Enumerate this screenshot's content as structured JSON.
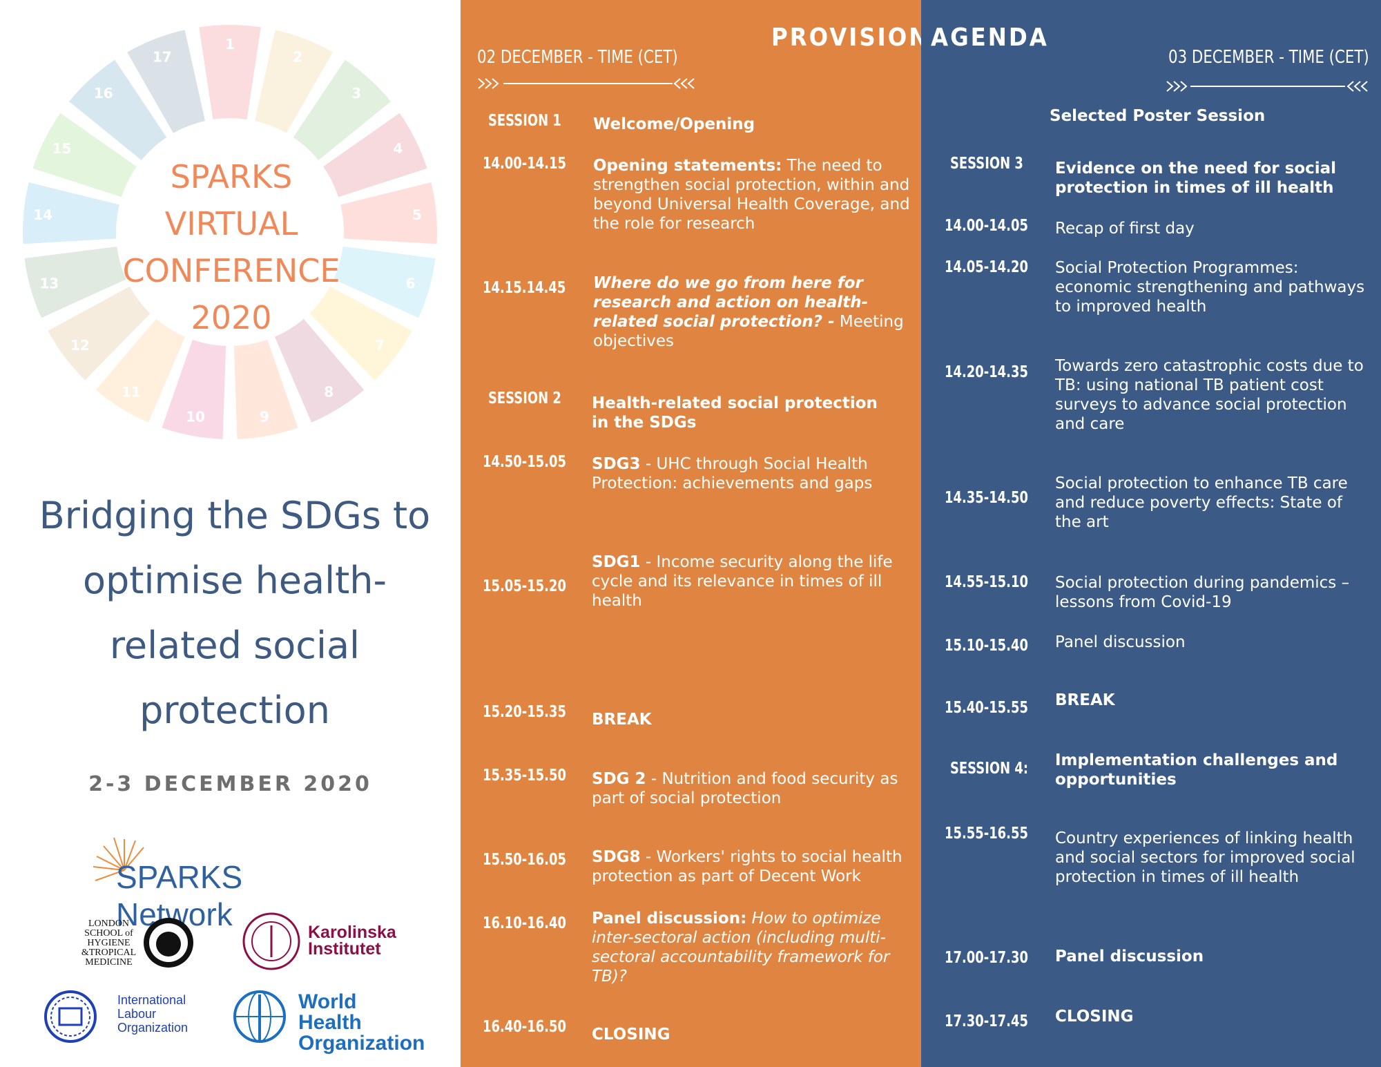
{
  "left": {
    "conference_title": [
      "SPARKS",
      "VIRTUAL",
      "CONFERENCE",
      "2020"
    ],
    "main_title": [
      "Bridging the SDGs to",
      "optimise health-",
      "related social",
      "protection"
    ],
    "dates": "2-3 DECEMBER 2020",
    "logos": {
      "sparks": "SPARKS Network",
      "lshtm": [
        "LONDON",
        "SCHOOL of",
        "HYGIENE",
        "&TROPICAL",
        "MEDICINE"
      ],
      "karolinska": [
        "Karolinska",
        "Institutet"
      ],
      "ilo": [
        "International",
        "Labour",
        "Organization"
      ],
      "who": [
        "World Health",
        "Organization"
      ]
    },
    "sdg_numbers": [
      "1",
      "2",
      "3",
      "4",
      "5",
      "6",
      "7",
      "8",
      "9",
      "10",
      "11",
      "12",
      "13",
      "14",
      "15",
      "16",
      "17"
    ]
  },
  "header": {
    "left": "PROVISIONAL",
    "right": "AGENDA"
  },
  "day1": {
    "heading": "02 DECEMBER - TIME (CET)",
    "session1_label": "SESSION 1",
    "session1_title": "Welcome/Opening",
    "item1_time": "14.00-14.15",
    "item1_bold": "Opening statements:",
    "item1_text": " The need to strengthen social protection, within and beyond Universal Health Coverage, and the role for research",
    "item2_time": "14.15.14.45",
    "item2_boldital": "Where do we go from here for research and action on health-related social protection? -",
    "item2_text": "  Meeting objectives",
    "session2_label": "SESSION 2",
    "session2_title": "Health-related social protection in the SDGs",
    "item3_time": "14.50-15.05",
    "item3_bold": "SDG3",
    "item3_text": " - UHC through Social Health Protection: achievements and gaps",
    "item4_time": "15.05-15.20",
    "item4_bold": "SDG1",
    "item4_text": " - Income security along the life cycle and its relevance in times of ill health",
    "item5_time": "15.20-15.35",
    "item5_title": "BREAK",
    "item6_time": "15.35-15.50",
    "item6_bold": "SDG 2",
    "item6_text": " - Nutrition and food security as part of social protection",
    "item7_time": "15.50-16.05",
    "item7_bold": "SDG8",
    "item7_text": " - Workers' rights to social health protection as part of Decent Work",
    "item8_time": "16.10-16.40",
    "item8_bold": "Panel discussion:",
    "item8_ital": " How to optimize inter-sectoral action (including multi-sectoral accountability framework for TB)?",
    "item9_time": "16.40-16.50",
    "item9_title": "CLOSING"
  },
  "day2": {
    "heading": "03 DECEMBER - TIME (CET)",
    "poster": "Selected Poster Session",
    "session3_label": "SESSION 3",
    "session3_title": "Evidence on the need for social protection in times of ill health",
    "item1_time": "14.00-14.05",
    "item1_text": "Recap of first day",
    "item2_time": "14.05-14.20",
    "item2_text": "Social Protection Programmes: economic strengthening and pathways to improved health",
    "item3_time": "14.20-14.35",
    "item3_text": "Towards zero catastrophic costs due to TB: using national TB patient cost surveys to advance social protection and care",
    "item4_time": "14.35-14.50",
    "item4_text": "Social protection to enhance TB care and reduce poverty effects: State of the art",
    "item5_time": "14.55-15.10",
    "item5_text": "Social protection during pandemics – lessons from Covid-19",
    "item6_time": "15.10-15.40",
    "item6_text": "Panel discussion",
    "item7_time": "15.40-15.55",
    "item7_title": "BREAK",
    "session4_label": "SESSION 4:",
    "session4_title": "Implementation challenges and opportunities",
    "item8_time": "15.55-16.55",
    "item8_text": "Country experiences of linking health and social sectors for improved social protection in times of ill health",
    "item9_time": "17.00-17.30",
    "item9_title": "Panel discussion",
    "item10_time": "17.30-17.45",
    "item10_title": "CLOSING"
  },
  "colors": {
    "orange": "#E08541",
    "blue": "#3C5A86",
    "title_orange": "#F0895A",
    "title_blue": "#3F5A80"
  }
}
